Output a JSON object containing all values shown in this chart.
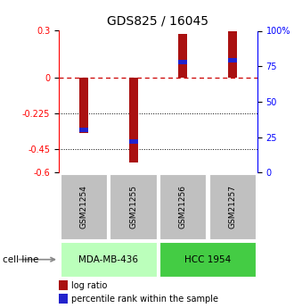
{
  "title": "GDS825 / 16045",
  "samples": [
    "GSM21254",
    "GSM21255",
    "GSM21256",
    "GSM21257"
  ],
  "log_ratios": [
    -0.35,
    -0.535,
    0.278,
    0.295
  ],
  "percentile_ranks": [
    30,
    22,
    78,
    79
  ],
  "ylim_left": [
    -0.6,
    0.3
  ],
  "ylim_right": [
    0,
    100
  ],
  "left_yticks": [
    0.3,
    0.0,
    -0.225,
    -0.45,
    -0.6
  ],
  "left_ytick_labels": [
    "0.3",
    "0",
    "-0.225",
    "-0.45",
    "-0.6"
  ],
  "right_yticks": [
    100,
    75,
    50,
    25,
    0
  ],
  "right_ytick_labels": [
    "100%",
    "75",
    "50",
    "25",
    "0"
  ],
  "hline_zero_color": "#cc0000",
  "hline_other_color": "#000000",
  "bar_color": "#aa1111",
  "dot_color": "#2222cc",
  "bar_width": 0.18,
  "cell_lines": [
    "MDA-MB-436",
    "HCC 1954"
  ],
  "cell_line_groups": [
    [
      0,
      1
    ],
    [
      2,
      3
    ]
  ],
  "cell_line_colors": [
    "#bbffbb",
    "#44cc44"
  ],
  "sample_box_color": "#c0c0c0",
  "legend_log_label": "log ratio",
  "legend_pct_label": "percentile rank within the sample"
}
